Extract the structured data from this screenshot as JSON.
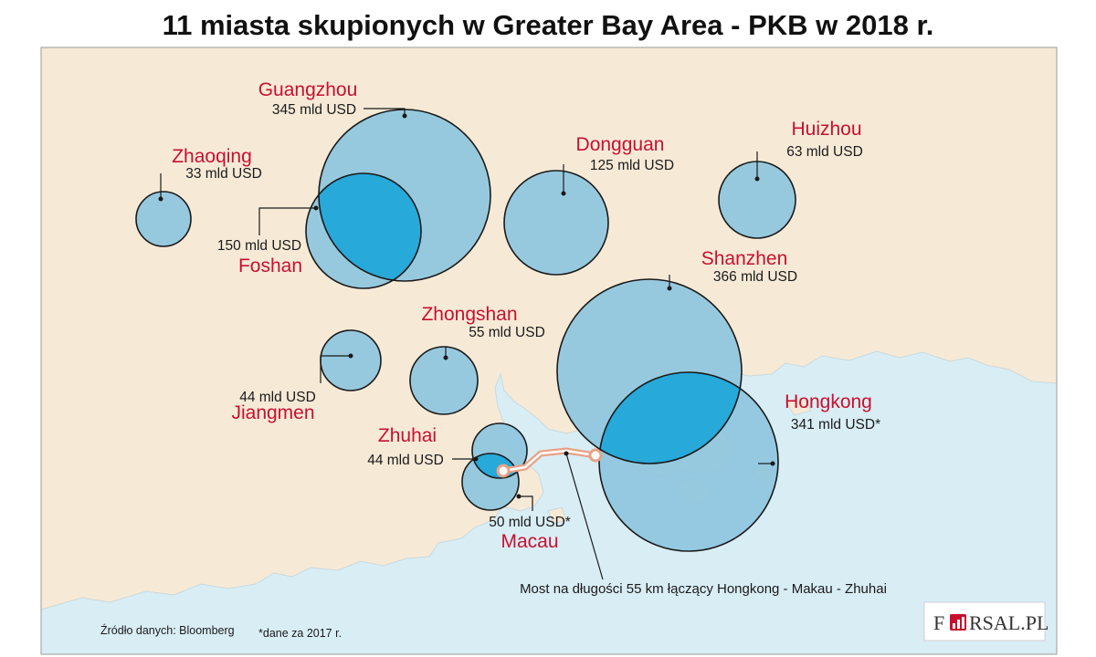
{
  "title": "11 miasta skupionych w Greater Bay Area - PKB w 2018 r.",
  "colors": {
    "land": "#f6ead7",
    "water": "#d9edf5",
    "bubble": "#8ec5de",
    "bubble_overlap": "#27a9d9",
    "city_label": "#c8102e",
    "bridge": "#e8a287"
  },
  "cities": [
    {
      "id": "guangzhou",
      "name": "Guangzhou",
      "gdp": "345 mld USD"
    },
    {
      "id": "zhaoqing",
      "name": "Zhaoqing",
      "gdp": "33 mld USD"
    },
    {
      "id": "foshan",
      "name": "Foshan",
      "gdp": "150 mld USD"
    },
    {
      "id": "dongguan",
      "name": "Dongguan",
      "gdp": "125 mld USD"
    },
    {
      "id": "huizhou",
      "name": "Huizhou",
      "gdp": "63 mld USD"
    },
    {
      "id": "shanzhen",
      "name": "Shanzhen",
      "gdp": "366 mld USD"
    },
    {
      "id": "zhongshan",
      "name": "Zhongshan",
      "gdp": "55 mld USD"
    },
    {
      "id": "jiangmen",
      "name": "Jiangmen",
      "gdp": "44 mld USD"
    },
    {
      "id": "zhuhai",
      "name": "Zhuhai",
      "gdp": "44 mld USD"
    },
    {
      "id": "hongkong",
      "name": "Hongkong",
      "gdp": "341 mld USD*"
    },
    {
      "id": "macau",
      "name": "Macau",
      "gdp": "50 mld USD*"
    }
  ],
  "bridge_label": "Most na długości 55 km łączący Hongkong - Makau - Zhuhai",
  "source": "Źródło danych: Bloomberg",
  "footnote": "*dane za 2017 r.",
  "logo": {
    "left": "F",
    "right": "RSAL.PL",
    "icon": "bar-chart-icon"
  }
}
